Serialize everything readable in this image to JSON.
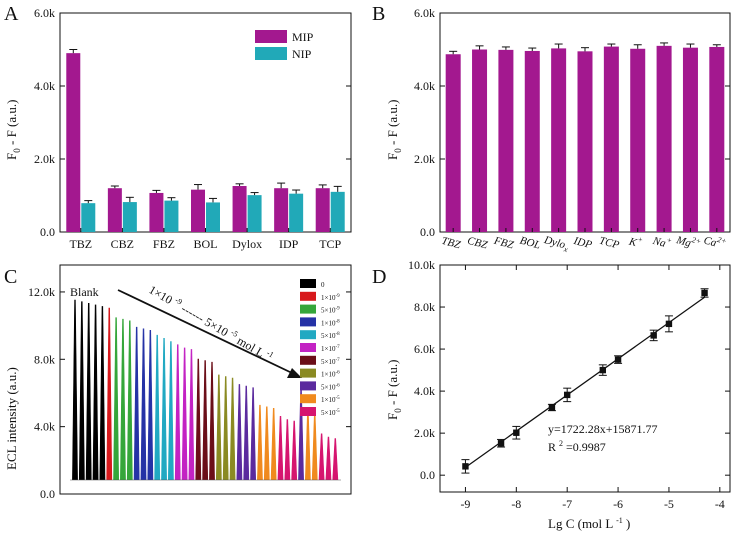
{
  "colors": {
    "mip": "#A3188F",
    "nip": "#21A9B8",
    "axis": "#111111",
    "ecl_series": [
      "#000000",
      "#D7191C",
      "#35A63A",
      "#2532A6",
      "#21A9C2",
      "#C322C3",
      "#6B0E18",
      "#8A8A22",
      "#5B2A9E",
      "#F08A1E",
      "#D6156F"
    ]
  },
  "chart_data": [
    {
      "panel": "A",
      "type": "bar",
      "categories": [
        "TBZ",
        "CBZ",
        "FBZ",
        "BOL",
        "Dylox",
        "IDP",
        "TCP"
      ],
      "series": [
        {
          "name": "MIP",
          "values": [
            4.9,
            1.2,
            1.07,
            1.16,
            1.26,
            1.2,
            1.2
          ],
          "errors": [
            0.1,
            0.06,
            0.07,
            0.14,
            0.06,
            0.14,
            0.09
          ]
        },
        {
          "name": "NIP",
          "values": [
            0.79,
            0.82,
            0.86,
            0.81,
            1.01,
            1.05,
            1.1
          ],
          "errors": [
            0.07,
            0.13,
            0.08,
            0.11,
            0.07,
            0.1,
            0.15
          ]
        }
      ],
      "ylabel": "F0 - F (a.u.)",
      "ylim": [
        0,
        6
      ],
      "yticks": [
        "0.0",
        "2.0k",
        "4.0k",
        "6.0k"
      ],
      "legend": "top-right"
    },
    {
      "panel": "B",
      "type": "bar",
      "categories": [
        "TBZ",
        "CBZ",
        "FBZ",
        "BOL",
        "Dylox",
        "IDP",
        "TCP",
        "K+",
        "Na+",
        "Mg2+",
        "Ca2+"
      ],
      "category_labels": [
        {
          "base": "TBZ",
          "sup": "",
          "sub": ""
        },
        {
          "base": "CBZ",
          "sup": "",
          "sub": ""
        },
        {
          "base": "FBZ",
          "sup": "",
          "sub": ""
        },
        {
          "base": "BOL",
          "sup": "",
          "sub": ""
        },
        {
          "base": "Dylo",
          "sup": "",
          "sub": "x"
        },
        {
          "base": "IDP",
          "sup": "",
          "sub": ""
        },
        {
          "base": "TCP",
          "sup": "",
          "sub": ""
        },
        {
          "base": "K",
          "sup": "+",
          "sub": ""
        },
        {
          "base": "Na",
          "sup": "+",
          "sub": ""
        },
        {
          "base": "Mg",
          "sup": "2+",
          "sub": ""
        },
        {
          "base": "Ca",
          "sup": "2+",
          "sub": ""
        }
      ],
      "series": [
        {
          "name": "MIP",
          "values": [
            4.87,
            5.0,
            4.99,
            4.96,
            5.03,
            4.95,
            5.08,
            5.02,
            5.1,
            5.05,
            5.07
          ],
          "errors": [
            0.08,
            0.1,
            0.08,
            0.08,
            0.12,
            0.1,
            0.07,
            0.11,
            0.08,
            0.1,
            0.06
          ]
        }
      ],
      "ylabel": "F0 - F (a.u.)",
      "ylim": [
        0,
        6
      ],
      "yticks": [
        "0.0",
        "2.0k",
        "4.0k",
        "6.0k"
      ]
    },
    {
      "panel": "C",
      "type": "line",
      "ylabel": "ECL intensity (a.u.)",
      "ylim": [
        0,
        13.6
      ],
      "yticks": [
        "0.0",
        "4.0k",
        "8.0k",
        "12.0k"
      ],
      "groups": [
        {
          "name": "0",
          "peaks": [
            11.3,
            11.2,
            11.1,
            11.0,
            10.9
          ]
        },
        {
          "name": "1×10^-9",
          "peaks": [
            10.8
          ]
        },
        {
          "name": "5×10^-9",
          "peaks": [
            10.2,
            10.1,
            10.0
          ]
        },
        {
          "name": "1×10^-8",
          "peaks": [
            9.6,
            9.5,
            9.4
          ]
        },
        {
          "name": "5×10^-8",
          "peaks": [
            9.1,
            8.9,
            8.7
          ]
        },
        {
          "name": "1×10^-7",
          "peaks": [
            8.5,
            8.3,
            8.2
          ]
        },
        {
          "name": "5×10^-7",
          "peaks": [
            7.6,
            7.5,
            7.4
          ]
        },
        {
          "name": "1×10^-6",
          "peaks": [
            6.6,
            6.5,
            6.4
          ]
        },
        {
          "name": "5×10^-6",
          "peaks": [
            6.0,
            5.9,
            5.8
          ]
        },
        {
          "name": "1×10^-5",
          "peaks": [
            4.7,
            4.6,
            4.5
          ]
        },
        {
          "name": "5×10^-5",
          "peaks": [
            4.0,
            3.8,
            3.7
          ]
        }
      ],
      "group_extra_peaks": [
        [
          5.8
        ],
        [
          4.4,
          4.2
        ],
        [
          2.9,
          2.7,
          2.6
        ]
      ],
      "annotations": {
        "blank": "Blank",
        "range_a": "1×10",
        "range_a_sup": "-9",
        "range_mid": "5×10",
        "range_b_sup": "-5",
        "range_unit": " mol L",
        "range_unit_sup": "-1"
      }
    },
    {
      "panel": "D",
      "type": "scatter",
      "x": [
        -9.0,
        -8.3,
        -8.0,
        -7.3,
        -7.0,
        -6.3,
        -6.0,
        -5.3,
        -5.0,
        -4.3
      ],
      "y": [
        0.42,
        1.52,
        2.02,
        3.22,
        3.82,
        5.0,
        5.5,
        6.65,
        7.2,
        8.67
      ],
      "errors": [
        0.32,
        0.18,
        0.3,
        0.15,
        0.32,
        0.25,
        0.18,
        0.25,
        0.38,
        0.2
      ],
      "fit": {
        "slope": 1.72228,
        "intercept": 15.87177
      },
      "xlabel": "Lg C (mol L",
      "xlabel_sup": "-1",
      "xlabel_end": ")",
      "ylabel": "F0 - F (a.u.)",
      "xlim": [
        -9.5,
        -3.8
      ],
      "ylim": [
        -0.8,
        10.0
      ],
      "xticks": [
        "-9",
        "-8",
        "-7",
        "-6",
        "-5",
        "-4"
      ],
      "yticks": [
        "0.0",
        "2.0k",
        "4.0k",
        "6.0k",
        "8.0k",
        "10.0k"
      ],
      "equation": "y=1722.28x+15871.77",
      "r2_label": "R",
      "r2_sup": "2",
      "r2_value": "=0.9987"
    }
  ],
  "panel_labels": [
    "A",
    "B",
    "C",
    "D"
  ],
  "legend_a": [
    "MIP",
    "NIP"
  ]
}
